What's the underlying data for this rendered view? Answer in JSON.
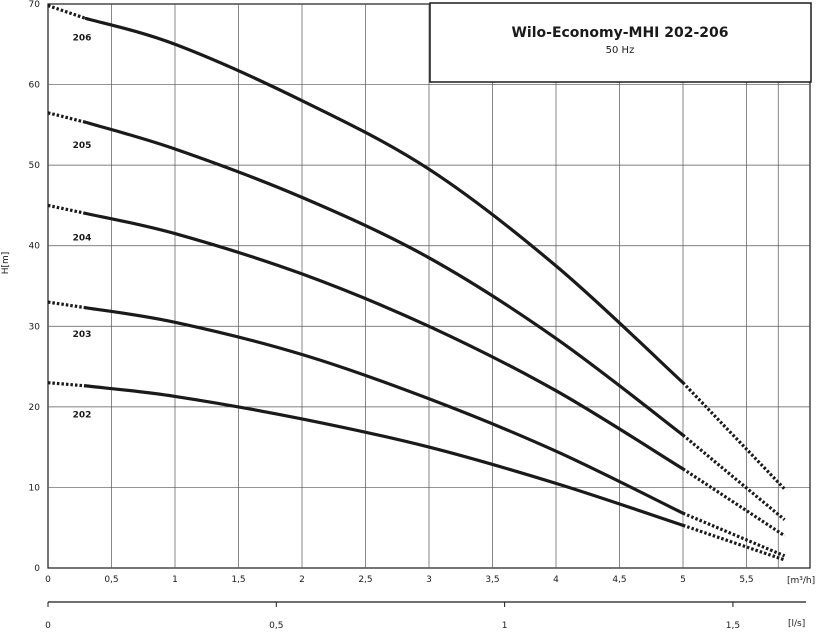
{
  "chart_data": {
    "type": "line",
    "title": "Wilo-Economy-MHI 202-206",
    "subtitle": "50 Hz",
    "ylabel": "H[m]",
    "xlabel": "[m³/h]",
    "x2label": "[l/s]",
    "xlim": [
      0,
      6.0
    ],
    "ylim": [
      0,
      70
    ],
    "x_ticks": [
      "0",
      "0,5",
      "1",
      "1,5",
      "2",
      "2,5",
      "3",
      "3,5",
      "4",
      "4,5",
      "5",
      "5,5"
    ],
    "x_tick_values": [
      0,
      0.5,
      1,
      1.5,
      2,
      2.5,
      3,
      3.5,
      4,
      4.5,
      5,
      5.5
    ],
    "y_ticks": [
      "0",
      "10",
      "20",
      "30",
      "40",
      "50",
      "60",
      "70"
    ],
    "y_tick_values": [
      0,
      10,
      20,
      30,
      40,
      50,
      60,
      70
    ],
    "x2_ticks": [
      "0",
      "0,5",
      "1",
      "1,5"
    ],
    "x2_tick_values": [
      0,
      0.5,
      1,
      1.5
    ],
    "x2_max_value": 1.66,
    "grid": true,
    "series": [
      {
        "name": "206",
        "x": [
          0,
          0.3,
          1,
          2,
          3,
          4,
          5.0,
          5.8
        ],
        "y": [
          69.8,
          68.2,
          65,
          58,
          49.5,
          37.5,
          23,
          9.8
        ],
        "solid_range": [
          0.3,
          5.0
        ]
      },
      {
        "name": "205",
        "x": [
          0,
          0.3,
          1,
          2,
          3,
          4,
          5.0,
          5.8
        ],
        "y": [
          56.5,
          55.3,
          52,
          46,
          38.5,
          28.5,
          16.5,
          6.0
        ],
        "solid_range": [
          0.3,
          5.0
        ]
      },
      {
        "name": "204",
        "x": [
          0,
          0.3,
          1,
          2,
          3,
          4,
          5.0,
          5.8
        ],
        "y": [
          45,
          44,
          41.5,
          36.5,
          30,
          22,
          12.3,
          4.0
        ],
        "solid_range": [
          0.3,
          5.0
        ]
      },
      {
        "name": "203",
        "x": [
          0,
          0.3,
          1,
          2,
          3,
          4,
          5.0,
          5.8
        ],
        "y": [
          33,
          32.3,
          30.5,
          26.5,
          21,
          14.5,
          6.8,
          1.5
        ],
        "solid_range": [
          0.3,
          5.0
        ]
      },
      {
        "name": "202",
        "x": [
          0,
          0.3,
          1,
          2,
          3,
          4,
          5.0,
          5.8
        ],
        "y": [
          23,
          22.6,
          21.3,
          18.5,
          15,
          10.5,
          5.3,
          1.0
        ],
        "solid_range": [
          0.3,
          5.0
        ]
      }
    ]
  },
  "colors": {
    "line": "#1a1a1a",
    "grid": "#555555",
    "background": "#ffffff"
  }
}
